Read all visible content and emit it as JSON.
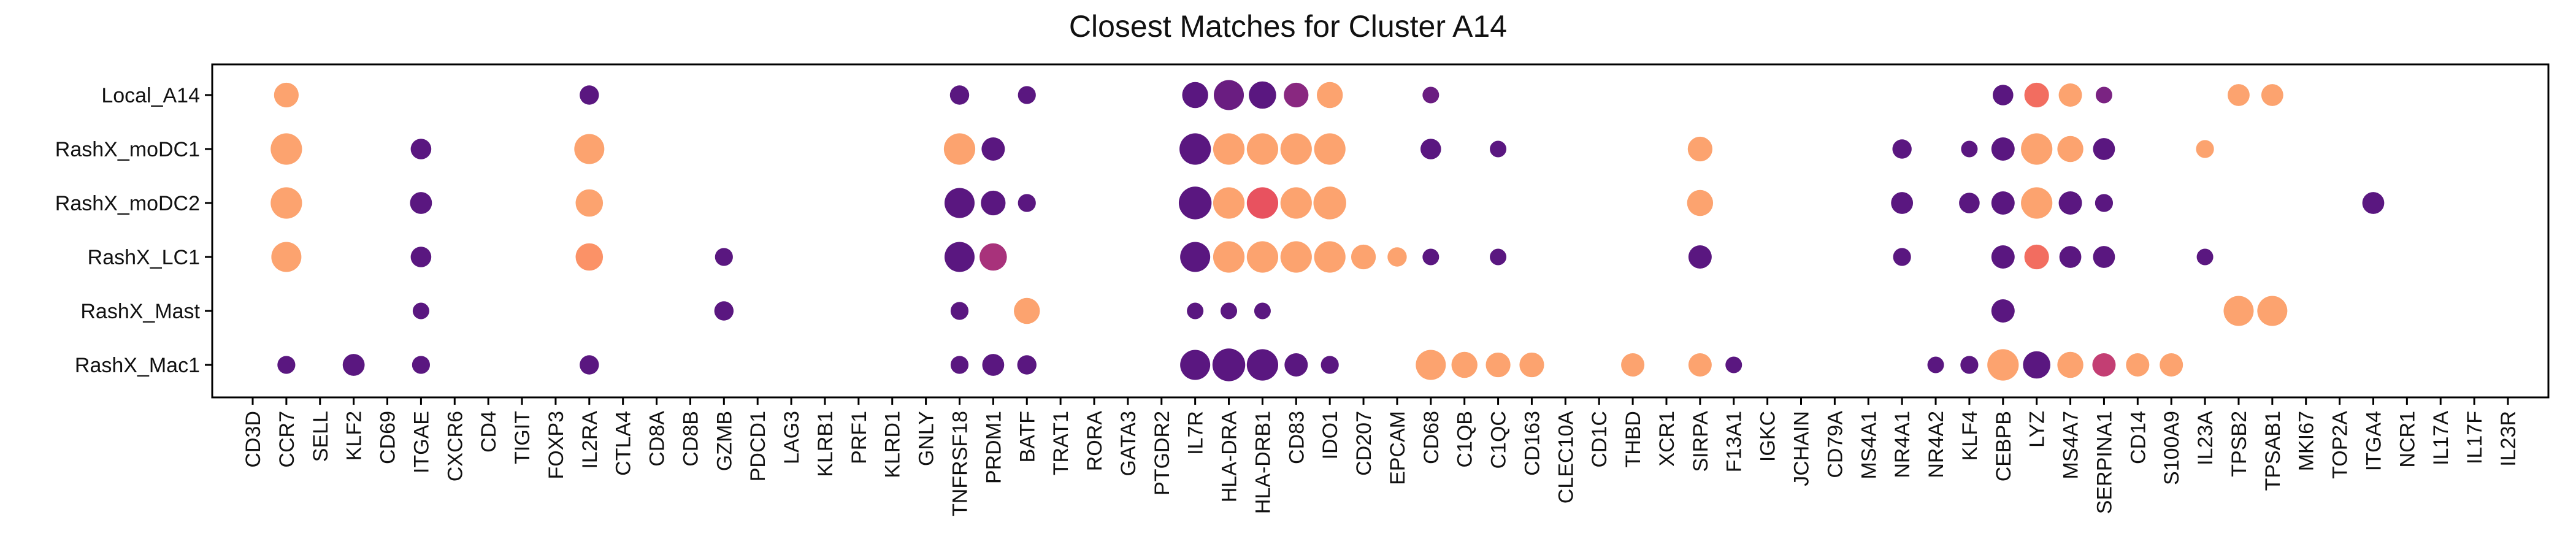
{
  "chart_data": {
    "type": "scatter",
    "subtype": "dot-plot",
    "title": "Closest Matches for Cluster A14",
    "xlabel": "",
    "ylabel": "",
    "grid": false,
    "legend": "none",
    "x_categories": [
      "CD3D",
      "CCR7",
      "SELL",
      "KLF2",
      "CD69",
      "ITGAE",
      "CXCR6",
      "CD4",
      "TIGIT",
      "FOXP3",
      "IL2RA",
      "CTLA4",
      "CD8A",
      "CD8B",
      "GZMB",
      "PDCD1",
      "LAG3",
      "KLRB1",
      "PRF1",
      "KLRD1",
      "GNLY",
      "TNFRSF18",
      "PRDM1",
      "BATF",
      "TRAT1",
      "RORA",
      "GATA3",
      "PTGDR2",
      "IL7R",
      "HLA-DRA",
      "HLA-DRB1",
      "CD83",
      "IDO1",
      "CD207",
      "EPCAM",
      "CD68",
      "C1QB",
      "C1QC",
      "CD163",
      "CLEC10A",
      "CD1C",
      "THBD",
      "XCR1",
      "SIRPA",
      "F13A1",
      "IGKC",
      "JCHAIN",
      "CD79A",
      "MS4A1",
      "NR4A1",
      "NR4A2",
      "KLF4",
      "CEBPB",
      "LYZ",
      "MS4A7",
      "SERPINA1",
      "CD14",
      "S100A9",
      "IL23A",
      "TPSB2",
      "TPSAB1",
      "MKI67",
      "TOP2A",
      "ITGA4",
      "NCR1",
      "IL17A",
      "IL17F",
      "IL23R"
    ],
    "y_categories": [
      "Local_A14",
      "RashX_moDC1",
      "RashX_moDC2",
      "RashX_LC1",
      "RashX_Mast",
      "RashX_Mac1"
    ],
    "size_scale": [
      0,
      1
    ],
    "color_scale": [
      0,
      1
    ],
    "colormap": [
      "#5a1780",
      "#7a2382",
      "#b73779",
      "#e8525f",
      "#fb8761",
      "#fca36f"
    ],
    "points": [
      {
        "row": "Local_A14",
        "gene": "CCR7",
        "size": 0.55,
        "color": 1.0
      },
      {
        "row": "Local_A14",
        "gene": "IL2RA",
        "size": 0.35,
        "color": 0.0
      },
      {
        "row": "Local_A14",
        "gene": "TNFRSF18",
        "size": 0.35,
        "color": 0.0
      },
      {
        "row": "Local_A14",
        "gene": "BATF",
        "size": 0.3,
        "color": 0.0
      },
      {
        "row": "Local_A14",
        "gene": "IL7R",
        "size": 0.6,
        "color": 0.0
      },
      {
        "row": "Local_A14",
        "gene": "HLA-DRA",
        "size": 0.75,
        "color": 0.1
      },
      {
        "row": "Local_A14",
        "gene": "HLA-DRB1",
        "size": 0.65,
        "color": 0.0
      },
      {
        "row": "Local_A14",
        "gene": "CD83",
        "size": 0.55,
        "color": 0.25
      },
      {
        "row": "Local_A14",
        "gene": "IDO1",
        "size": 0.6,
        "color": 1.0
      },
      {
        "row": "Local_A14",
        "gene": "CD68",
        "size": 0.25,
        "color": 0.1
      },
      {
        "row": "Local_A14",
        "gene": "CEBPB",
        "size": 0.4,
        "color": 0.0
      },
      {
        "row": "Local_A14",
        "gene": "LYZ",
        "size": 0.55,
        "color": 0.7
      },
      {
        "row": "Local_A14",
        "gene": "MS4A7",
        "size": 0.5,
        "color": 1.0
      },
      {
        "row": "Local_A14",
        "gene": "SERPINA1",
        "size": 0.25,
        "color": 0.2
      },
      {
        "row": "Local_A14",
        "gene": "TPSB2",
        "size": 0.45,
        "color": 1.0
      },
      {
        "row": "Local_A14",
        "gene": "TPSAB1",
        "size": 0.45,
        "color": 1.0
      },
      {
        "row": "RashX_moDC1",
        "gene": "CCR7",
        "size": 0.8,
        "color": 1.0
      },
      {
        "row": "RashX_moDC1",
        "gene": "ITGAE",
        "size": 0.4,
        "color": 0.0
      },
      {
        "row": "RashX_moDC1",
        "gene": "IL2RA",
        "size": 0.75,
        "color": 1.0
      },
      {
        "row": "RashX_moDC1",
        "gene": "TNFRSF18",
        "size": 0.8,
        "color": 1.0
      },
      {
        "row": "RashX_moDC1",
        "gene": "PRDM1",
        "size": 0.5,
        "color": 0.0
      },
      {
        "row": "RashX_moDC1",
        "gene": "IL7R",
        "size": 0.8,
        "color": 0.0
      },
      {
        "row": "RashX_moDC1",
        "gene": "HLA-DRA",
        "size": 0.8,
        "color": 1.0
      },
      {
        "row": "RashX_moDC1",
        "gene": "HLA-DRB1",
        "size": 0.8,
        "color": 1.0
      },
      {
        "row": "RashX_moDC1",
        "gene": "CD83",
        "size": 0.8,
        "color": 1.0
      },
      {
        "row": "RashX_moDC1",
        "gene": "IDO1",
        "size": 0.8,
        "color": 1.0
      },
      {
        "row": "RashX_moDC1",
        "gene": "CD68",
        "size": 0.4,
        "color": 0.0
      },
      {
        "row": "RashX_moDC1",
        "gene": "C1QC",
        "size": 0.25,
        "color": 0.0
      },
      {
        "row": "RashX_moDC1",
        "gene": "SIRPA",
        "size": 0.55,
        "color": 1.0
      },
      {
        "row": "RashX_moDC1",
        "gene": "NR4A1",
        "size": 0.35,
        "color": 0.0
      },
      {
        "row": "RashX_moDC1",
        "gene": "KLF4",
        "size": 0.25,
        "color": 0.0
      },
      {
        "row": "RashX_moDC1",
        "gene": "CEBPB",
        "size": 0.5,
        "color": 0.0
      },
      {
        "row": "RashX_moDC1",
        "gene": "LYZ",
        "size": 0.8,
        "color": 1.0
      },
      {
        "row": "RashX_moDC1",
        "gene": "MS4A7",
        "size": 0.6,
        "color": 1.0
      },
      {
        "row": "RashX_moDC1",
        "gene": "SERPINA1",
        "size": 0.45,
        "color": 0.0
      },
      {
        "row": "RashX_moDC1",
        "gene": "IL23A",
        "size": 0.3,
        "color": 1.0
      },
      {
        "row": "RashX_moDC2",
        "gene": "CCR7",
        "size": 0.8,
        "color": 1.0
      },
      {
        "row": "RashX_moDC2",
        "gene": "ITGAE",
        "size": 0.45,
        "color": 0.0
      },
      {
        "row": "RashX_moDC2",
        "gene": "IL2RA",
        "size": 0.65,
        "color": 1.0
      },
      {
        "row": "RashX_moDC2",
        "gene": "TNFRSF18",
        "size": 0.75,
        "color": 0.0
      },
      {
        "row": "RashX_moDC2",
        "gene": "PRDM1",
        "size": 0.55,
        "color": 0.0
      },
      {
        "row": "RashX_moDC2",
        "gene": "BATF",
        "size": 0.3,
        "color": 0.0
      },
      {
        "row": "RashX_moDC2",
        "gene": "IL7R",
        "size": 0.85,
        "color": 0.0
      },
      {
        "row": "RashX_moDC2",
        "gene": "HLA-DRA",
        "size": 0.8,
        "color": 1.0
      },
      {
        "row": "RashX_moDC2",
        "gene": "HLA-DRB1",
        "size": 0.8,
        "color": 0.6
      },
      {
        "row": "RashX_moDC2",
        "gene": "CD83",
        "size": 0.8,
        "color": 1.0
      },
      {
        "row": "RashX_moDC2",
        "gene": "IDO1",
        "size": 0.85,
        "color": 1.0
      },
      {
        "row": "RashX_moDC2",
        "gene": "SIRPA",
        "size": 0.6,
        "color": 1.0
      },
      {
        "row": "RashX_moDC2",
        "gene": "NR4A1",
        "size": 0.45,
        "color": 0.0
      },
      {
        "row": "RashX_moDC2",
        "gene": "KLF4",
        "size": 0.4,
        "color": 0.0
      },
      {
        "row": "RashX_moDC2",
        "gene": "CEBPB",
        "size": 0.5,
        "color": 0.0
      },
      {
        "row": "RashX_moDC2",
        "gene": "LYZ",
        "size": 0.8,
        "color": 1.0
      },
      {
        "row": "RashX_moDC2",
        "gene": "MS4A7",
        "size": 0.5,
        "color": 0.0
      },
      {
        "row": "RashX_moDC2",
        "gene": "SERPINA1",
        "size": 0.3,
        "color": 0.0
      },
      {
        "row": "RashX_moDC2",
        "gene": "ITGA4",
        "size": 0.45,
        "color": 0.0
      },
      {
        "row": "RashX_LC1",
        "gene": "CCR7",
        "size": 0.75,
        "color": 1.0
      },
      {
        "row": "RashX_LC1",
        "gene": "ITGAE",
        "size": 0.4,
        "color": 0.0
      },
      {
        "row": "RashX_LC1",
        "gene": "IL2RA",
        "size": 0.65,
        "color": 0.88
      },
      {
        "row": "RashX_LC1",
        "gene": "GZMB",
        "size": 0.3,
        "color": 0.0
      },
      {
        "row": "RashX_LC1",
        "gene": "TNFRSF18",
        "size": 0.75,
        "color": 0.0
      },
      {
        "row": "RashX_LC1",
        "gene": "PRDM1",
        "size": 0.65,
        "color": 0.35
      },
      {
        "row": "RashX_LC1",
        "gene": "IL7R",
        "size": 0.75,
        "color": 0.0
      },
      {
        "row": "RashX_LC1",
        "gene": "HLA-DRA",
        "size": 0.8,
        "color": 1.0
      },
      {
        "row": "RashX_LC1",
        "gene": "HLA-DRB1",
        "size": 0.8,
        "color": 1.0
      },
      {
        "row": "RashX_LC1",
        "gene": "CD83",
        "size": 0.8,
        "color": 1.0
      },
      {
        "row": "RashX_LC1",
        "gene": "IDO1",
        "size": 0.8,
        "color": 1.0
      },
      {
        "row": "RashX_LC1",
        "gene": "CD207",
        "size": 0.55,
        "color": 1.0
      },
      {
        "row": "RashX_LC1",
        "gene": "EPCAM",
        "size": 0.35,
        "color": 1.0
      },
      {
        "row": "RashX_LC1",
        "gene": "CD68",
        "size": 0.25,
        "color": 0.0
      },
      {
        "row": "RashX_LC1",
        "gene": "C1QC",
        "size": 0.25,
        "color": 0.0
      },
      {
        "row": "RashX_LC1",
        "gene": "SIRPA",
        "size": 0.5,
        "color": 0.0
      },
      {
        "row": "RashX_LC1",
        "gene": "NR4A1",
        "size": 0.3,
        "color": 0.0
      },
      {
        "row": "RashX_LC1",
        "gene": "CEBPB",
        "size": 0.5,
        "color": 0.0
      },
      {
        "row": "RashX_LC1",
        "gene": "LYZ",
        "size": 0.55,
        "color": 0.7
      },
      {
        "row": "RashX_LC1",
        "gene": "MS4A7",
        "size": 0.45,
        "color": 0.0
      },
      {
        "row": "RashX_LC1",
        "gene": "SERPINA1",
        "size": 0.45,
        "color": 0.0
      },
      {
        "row": "RashX_LC1",
        "gene": "IL23A",
        "size": 0.25,
        "color": 0.0
      },
      {
        "row": "RashX_Mast",
        "gene": "ITGAE",
        "size": 0.25,
        "color": 0.0
      },
      {
        "row": "RashX_Mast",
        "gene": "GZMB",
        "size": 0.35,
        "color": 0.0
      },
      {
        "row": "RashX_Mast",
        "gene": "TNFRSF18",
        "size": 0.3,
        "color": 0.0
      },
      {
        "row": "RashX_Mast",
        "gene": "BATF",
        "size": 0.6,
        "color": 1.0
      },
      {
        "row": "RashX_Mast",
        "gene": "IL7R",
        "size": 0.25,
        "color": 0.0
      },
      {
        "row": "RashX_Mast",
        "gene": "HLA-DRA",
        "size": 0.25,
        "color": 0.0
      },
      {
        "row": "RashX_Mast",
        "gene": "HLA-DRB1",
        "size": 0.25,
        "color": 0.0
      },
      {
        "row": "RashX_Mast",
        "gene": "CEBPB",
        "size": 0.5,
        "color": 0.0
      },
      {
        "row": "RashX_Mast",
        "gene": "TPSB2",
        "size": 0.75,
        "color": 1.0
      },
      {
        "row": "RashX_Mast",
        "gene": "TPSAB1",
        "size": 0.75,
        "color": 1.0
      },
      {
        "row": "RashX_Mac1",
        "gene": "CCR7",
        "size": 0.3,
        "color": 0.0
      },
      {
        "row": "RashX_Mac1",
        "gene": "KLF2",
        "size": 0.45,
        "color": 0.0
      },
      {
        "row": "RashX_Mac1",
        "gene": "ITGAE",
        "size": 0.3,
        "color": 0.0
      },
      {
        "row": "RashX_Mac1",
        "gene": "IL2RA",
        "size": 0.35,
        "color": 0.0
      },
      {
        "row": "RashX_Mac1",
        "gene": "TNFRSF18",
        "size": 0.3,
        "color": 0.0
      },
      {
        "row": "RashX_Mac1",
        "gene": "PRDM1",
        "size": 0.45,
        "color": 0.0
      },
      {
        "row": "RashX_Mac1",
        "gene": "BATF",
        "size": 0.35,
        "color": 0.0
      },
      {
        "row": "RashX_Mac1",
        "gene": "IL7R",
        "size": 0.75,
        "color": 0.0
      },
      {
        "row": "RashX_Mac1",
        "gene": "HLA-DRA",
        "size": 0.85,
        "color": 0.0
      },
      {
        "row": "RashX_Mac1",
        "gene": "HLA-DRB1",
        "size": 0.8,
        "color": 0.0
      },
      {
        "row": "RashX_Mac1",
        "gene": "CD83",
        "size": 0.5,
        "color": 0.0
      },
      {
        "row": "RashX_Mac1",
        "gene": "IDO1",
        "size": 0.3,
        "color": 0.0
      },
      {
        "row": "RashX_Mac1",
        "gene": "CD68",
        "size": 0.75,
        "color": 1.0
      },
      {
        "row": "RashX_Mac1",
        "gene": "C1QB",
        "size": 0.6,
        "color": 1.0
      },
      {
        "row": "RashX_Mac1",
        "gene": "C1QC",
        "size": 0.55,
        "color": 1.0
      },
      {
        "row": "RashX_Mac1",
        "gene": "CD163",
        "size": 0.55,
        "color": 1.0
      },
      {
        "row": "RashX_Mac1",
        "gene": "THBD",
        "size": 0.5,
        "color": 1.0
      },
      {
        "row": "RashX_Mac1",
        "gene": "SIRPA",
        "size": 0.5,
        "color": 1.0
      },
      {
        "row": "RashX_Mac1",
        "gene": "F13A1",
        "size": 0.25,
        "color": 0.0
      },
      {
        "row": "RashX_Mac1",
        "gene": "NR4A2",
        "size": 0.25,
        "color": 0.0
      },
      {
        "row": "RashX_Mac1",
        "gene": "KLF4",
        "size": 0.3,
        "color": 0.0
      },
      {
        "row": "RashX_Mac1",
        "gene": "CEBPB",
        "size": 0.8,
        "color": 1.0
      },
      {
        "row": "RashX_Mac1",
        "gene": "LYZ",
        "size": 0.65,
        "color": 0.0
      },
      {
        "row": "RashX_Mac1",
        "gene": "MS4A7",
        "size": 0.6,
        "color": 1.0
      },
      {
        "row": "RashX_Mac1",
        "gene": "SERPINA1",
        "size": 0.5,
        "color": 0.45
      },
      {
        "row": "RashX_Mac1",
        "gene": "CD14",
        "size": 0.5,
        "color": 1.0
      },
      {
        "row": "RashX_Mac1",
        "gene": "S100A9",
        "size": 0.5,
        "color": 1.0
      }
    ]
  }
}
